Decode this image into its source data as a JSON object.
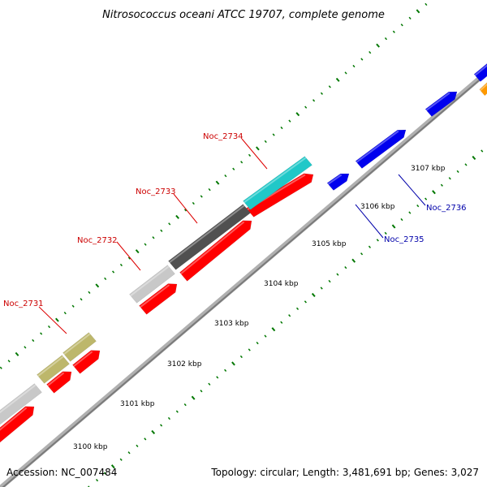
{
  "title": "Nitrosococcus oceani ATCC 19707, complete genome",
  "footer": {
    "accession": "Accession: NC_007484",
    "summary": "Topology: circular; Length: 3,481,691 bp; Genes: 3,027"
  },
  "ticks": [
    "3100 kbp",
    "3101 kbp",
    "3102 kbp",
    "3103 kbp",
    "3104 kbp",
    "3105 kbp",
    "3106 kbp",
    "3107 kbp"
  ],
  "gene_labels": {
    "reverse": [
      "Noc_2731",
      "Noc_2732",
      "Noc_2733",
      "Noc_2734"
    ],
    "forward": [
      "Noc_2735",
      "Noc_2736"
    ]
  },
  "colors": {
    "backbone": "#8c8c8c",
    "cds": "#ff0000",
    "forward_gene": "#0000ee",
    "orange_gene": "#ff9900",
    "label_red": "#cc0000",
    "label_blue": "#0000aa",
    "tick_green": "#007700",
    "khaki": "#bdb76b",
    "cyan": "#20c8c8",
    "dark_grey": "#505050",
    "light_grey": "#c8c8c8"
  }
}
